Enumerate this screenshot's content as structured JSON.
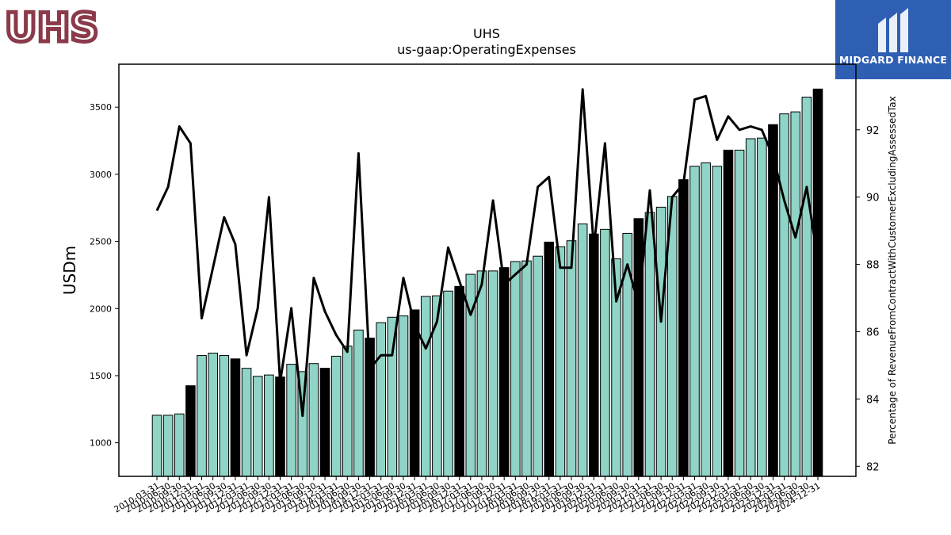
{
  "logos": {
    "left_text": "UHS",
    "right_text": "MIDGARD FINANCE",
    "left_color": "#8b3a4a",
    "right_bg": "#2f5fb3"
  },
  "colors": {
    "bar_regular": "#8fd4c6",
    "bar_highlight": "#000000",
    "line": "#000000"
  },
  "chart_data": {
    "type": "bar",
    "title": "UHS",
    "subtitle": "us-gaap:OperatingExpenses",
    "ylabel": "USDm",
    "y2label": "Percentage of RevenueFromContractWithCustomerExcludingAssessedTax",
    "ylim": [
      750,
      3820
    ],
    "y2lim": [
      81.7,
      93.95
    ],
    "yticks": [
      1000,
      1500,
      2000,
      2500,
      3000,
      3500
    ],
    "y2ticks": [
      82,
      84,
      86,
      88,
      90,
      92
    ],
    "categories": [
      "2010-03-31",
      "2010-06-30",
      "2010-09-30",
      "2010-12-31",
      "2011-03-31",
      "2011-06-30",
      "2011-09-30",
      "2011-12-31",
      "2012-03-31",
      "2012-06-30",
      "2012-09-30",
      "2012-12-31",
      "2013-03-31",
      "2013-06-30",
      "2013-09-30",
      "2013-12-31",
      "2014-03-31",
      "2014-06-30",
      "2014-09-30",
      "2014-12-31",
      "2015-03-31",
      "2015-06-30",
      "2015-09-30",
      "2015-12-31",
      "2016-03-31",
      "2016-06-30",
      "2016-09-30",
      "2016-12-31",
      "2017-03-31",
      "2017-06-30",
      "2017-09-30",
      "2017-12-31",
      "2018-03-31",
      "2018-06-30",
      "2018-09-30",
      "2018-12-31",
      "2019-03-31",
      "2019-06-30",
      "2019-09-30",
      "2019-12-31",
      "2020-03-31",
      "2020-06-30",
      "2020-09-30",
      "2020-12-31",
      "2021-03-31",
      "2021-06-30",
      "2021-09-30",
      "2021-12-31",
      "2022-03-31",
      "2022-06-30",
      "2022-09-30",
      "2022-12-31",
      "2023-03-31",
      "2023-06-30",
      "2023-09-30",
      "2023-12-31",
      "2024-03-31",
      "2024-06-30",
      "2024-09-30",
      "2024-12-31"
    ],
    "series": [
      {
        "type": "bar",
        "values": [
          1205,
          1205,
          1215,
          1425,
          1650,
          1668,
          1650,
          1625,
          1555,
          1495,
          1505,
          1490,
          1585,
          1530,
          1590,
          1555,
          1645,
          1720,
          1840,
          1780,
          1895,
          1935,
          1945,
          1990,
          2090,
          2095,
          2130,
          2165,
          2255,
          2280,
          2280,
          2305,
          2350,
          2355,
          2390,
          2495,
          2460,
          2505,
          2630,
          2555,
          2590,
          2370,
          2560,
          2670,
          2715,
          2755,
          2835,
          2960,
          3060,
          3085,
          3060,
          3180,
          3180,
          3265,
          3270,
          3370,
          3450,
          3465,
          3575,
          3635
        ],
        "highlight_every": 4,
        "highlight_offset": 3
      },
      {
        "type": "line",
        "axis": "right",
        "values": [
          89.6,
          90.3,
          92.1,
          91.6,
          86.4,
          87.9,
          89.4,
          88.6,
          85.3,
          86.7,
          90.0,
          84.5,
          86.7,
          83.5,
          87.6,
          86.6,
          85.9,
          85.4,
          91.3,
          84.9,
          85.3,
          85.3,
          87.6,
          86.2,
          85.5,
          86.3,
          88.5,
          87.5,
          86.5,
          87.4,
          89.9,
          87.4,
          87.7,
          88.0,
          90.3,
          90.6,
          87.9,
          87.9,
          93.2,
          88.5,
          91.6,
          86.9,
          88.0,
          86.8,
          90.2,
          86.3,
          90.0,
          90.4,
          92.9,
          93.0,
          91.7,
          92.4,
          92.0,
          92.1,
          92.0,
          91.2,
          89.9,
          88.8,
          90.3,
          88.1
        ]
      }
    ]
  }
}
